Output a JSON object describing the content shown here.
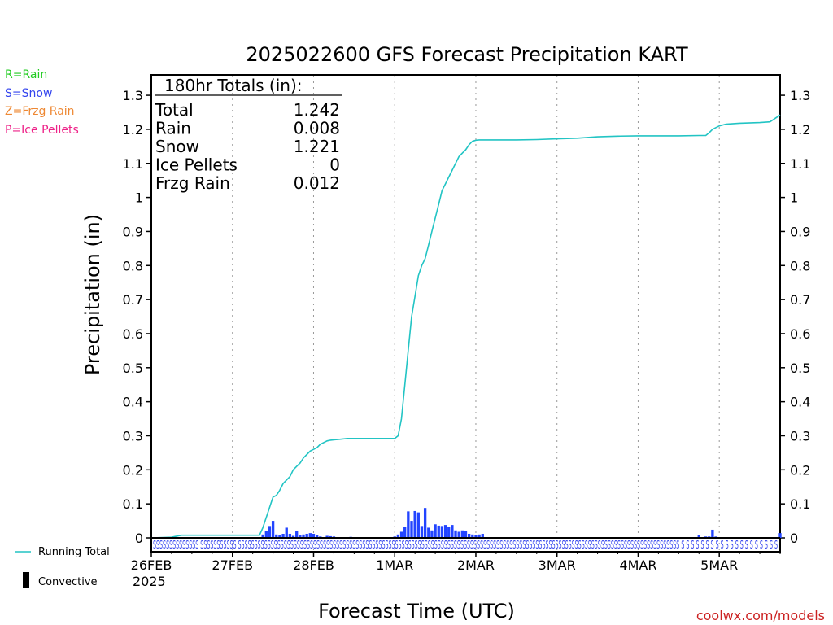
{
  "chart_data": {
    "type": "line",
    "title": "2025022600 GFS Forecast Precipitation KART",
    "xlabel": "Forecast Time (UTC)",
    "ylabel": "Precipitation (in)",
    "ylim": [
      0,
      1.35
    ],
    "y_ticks": [
      "0",
      "0.1",
      "0.2",
      "0.3",
      "0.4",
      "0.5",
      "0.6",
      "0.7",
      "0.8",
      "0.9",
      "1",
      "1.1",
      "1.2",
      "1.3"
    ],
    "x_range_hours": [
      0,
      186
    ],
    "x_ticks": [
      {
        "hour": 0,
        "label": "26FEB"
      },
      {
        "hour": 24,
        "label": "27FEB"
      },
      {
        "hour": 48,
        "label": "28FEB"
      },
      {
        "hour": 72,
        "label": "1MAR"
      },
      {
        "hour": 96,
        "label": "2MAR"
      },
      {
        "hour": 120,
        "label": "3MAR"
      },
      {
        "hour": 144,
        "label": "4MAR"
      },
      {
        "hour": 168,
        "label": "5MAR"
      }
    ],
    "year_label": "2025",
    "grid": "vertical dotted at day boundaries",
    "legend_position": "left",
    "precip_type_legend": [
      {
        "label": "R=Rain",
        "color": "#22cc22"
      },
      {
        "label": "S=Snow",
        "color": "#3344ee"
      },
      {
        "label": "Z=Frzg Rain",
        "color": "#ee8833"
      },
      {
        "label": "P=Ice Pellets",
        "color": "#ee2288"
      }
    ],
    "series_legend": [
      {
        "label": "Running Total",
        "color": "#22c4c4"
      },
      {
        "label": "Convective",
        "color": "#000000"
      }
    ],
    "totals": {
      "header": "180hr Totals (in):",
      "rows": [
        {
          "label": "Total",
          "value": "1.242"
        },
        {
          "label": "Rain",
          "value": "0.008"
        },
        {
          "label": "Snow",
          "value": "1.221"
        },
        {
          "label": "Ice Pellets",
          "value": "0"
        },
        {
          "label": "Frzg Rain",
          "value": "0.012"
        }
      ]
    },
    "series": [
      {
        "name": "Running Total",
        "color": "#22c4c4",
        "x": [
          0,
          6,
          7,
          8,
          9,
          12,
          18,
          24,
          30,
          32,
          33,
          34,
          35,
          36,
          37,
          38,
          39,
          40,
          41,
          42,
          43,
          44,
          45,
          46,
          47,
          48,
          49,
          50,
          51,
          52,
          53,
          54,
          56,
          58,
          60,
          66,
          70,
          72,
          73,
          74,
          75,
          76,
          77,
          78,
          79,
          80,
          81,
          82,
          83,
          84,
          85,
          86,
          87,
          88,
          89,
          90,
          91,
          92,
          93,
          94,
          95,
          96,
          97,
          98,
          99,
          100,
          102,
          108,
          114,
          120,
          126,
          132,
          138,
          144,
          150,
          156,
          162,
          164,
          165,
          166,
          167,
          168,
          170,
          174,
          180,
          183,
          186
        ],
        "y": [
          0.0,
          0.002,
          0.004,
          0.006,
          0.008,
          0.008,
          0.008,
          0.008,
          0.008,
          0.008,
          0.03,
          0.06,
          0.09,
          0.12,
          0.125,
          0.14,
          0.16,
          0.17,
          0.18,
          0.2,
          0.21,
          0.22,
          0.235,
          0.245,
          0.255,
          0.26,
          0.265,
          0.275,
          0.28,
          0.285,
          0.287,
          0.288,
          0.29,
          0.292,
          0.292,
          0.292,
          0.292,
          0.292,
          0.3,
          0.35,
          0.45,
          0.55,
          0.65,
          0.71,
          0.77,
          0.8,
          0.82,
          0.86,
          0.9,
          0.94,
          0.98,
          1.02,
          1.04,
          1.06,
          1.08,
          1.1,
          1.12,
          1.13,
          1.14,
          1.155,
          1.165,
          1.168,
          1.169,
          1.169,
          1.169,
          1.169,
          1.169,
          1.169,
          1.17,
          1.172,
          1.174,
          1.178,
          1.18,
          1.181,
          1.181,
          1.181,
          1.182,
          1.182,
          1.19,
          1.2,
          1.205,
          1.21,
          1.215,
          1.218,
          1.22,
          1.222,
          1.242
        ]
      },
      {
        "name": "Snow (hourly)",
        "type": "bar",
        "color": "#2244ff",
        "x": [
          33,
          34,
          35,
          36,
          37,
          38,
          39,
          40,
          41,
          42,
          43,
          44,
          45,
          46,
          47,
          48,
          49,
          50,
          51,
          52,
          53,
          54,
          55,
          56,
          57,
          58,
          59,
          60,
          61,
          62,
          63,
          64,
          65,
          66,
          67,
          68,
          69,
          70,
          71,
          72,
          73,
          74,
          75,
          76,
          77,
          78,
          79,
          80,
          81,
          82,
          83,
          84,
          85,
          86,
          87,
          88,
          89,
          90,
          91,
          92,
          93,
          94,
          95,
          96,
          97,
          98,
          162,
          164,
          165,
          166,
          167,
          186
        ],
        "y": [
          0.01,
          0.02,
          0.035,
          0.05,
          0.01,
          0.008,
          0.012,
          0.03,
          0.012,
          0.006,
          0.02,
          0.008,
          0.01,
          0.012,
          0.014,
          0.012,
          0.008,
          0.004,
          0.002,
          0.006,
          0.005,
          0.004,
          0.002,
          0.001,
          0.002,
          0.001,
          0.003,
          0.002,
          0.001,
          0.001,
          0.001,
          0.001,
          0.001,
          0.001,
          0.001,
          0.001,
          0.001,
          0.001,
          0.002,
          0.004,
          0.01,
          0.018,
          0.033,
          0.078,
          0.05,
          0.079,
          0.075,
          0.035,
          0.088,
          0.03,
          0.022,
          0.04,
          0.036,
          0.035,
          0.038,
          0.032,
          0.038,
          0.022,
          0.018,
          0.022,
          0.02,
          0.012,
          0.01,
          0.008,
          0.01,
          0.012,
          0.008,
          0.004,
          0.004,
          0.024,
          0.004,
          0.014
        ]
      }
    ],
    "precip_type_strip": "SSSSSSSSSSSSSS SSSSSSSSSSS SSSSSSSSSSSSSSSSSSSSSSSSSSSSSSSSSSSSSSSSSSSSSSSSSSSSSSSSSSSSSSSSSSSSSSSSSSSSSSSSSSSSSSSSSSSSSSSSSSSSSSSSSSSSSSSSSSSSSSSSSSSSSSSSSSSSSSS S S S S S S S S S   S S S S S S S S S S S",
    "credit": "coolwx.com/models"
  }
}
